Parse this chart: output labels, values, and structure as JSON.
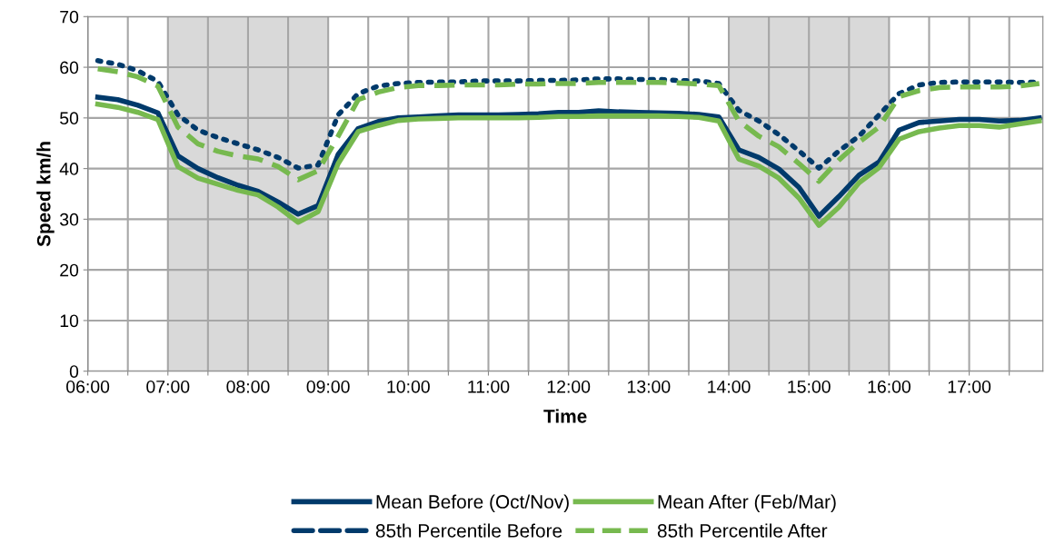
{
  "chart_data": {
    "type": "line",
    "xlabel": "Time",
    "ylabel": "Speed km/h",
    "x": [
      6.125,
      6.375,
      6.625,
      6.875,
      7.125,
      7.375,
      7.625,
      7.875,
      8.125,
      8.375,
      8.625,
      8.875,
      9.125,
      9.375,
      9.625,
      9.875,
      10.125,
      10.375,
      10.625,
      10.875,
      11.125,
      11.375,
      11.625,
      11.875,
      12.125,
      12.375,
      12.625,
      12.875,
      13.125,
      13.375,
      13.625,
      13.875,
      14.125,
      14.375,
      14.625,
      14.875,
      15.125,
      15.375,
      15.625,
      15.875,
      16.125,
      16.375,
      16.625,
      16.875,
      17.125,
      17.375,
      17.625,
      17.875
    ],
    "series": [
      {
        "name": "Mean Before (Oct/Nov)",
        "color": "#003a6b",
        "line_style": "solid",
        "values": [
          54.1,
          53.6,
          52.5,
          51.0,
          42.5,
          40.0,
          38.2,
          36.7,
          35.5,
          33.4,
          31.0,
          32.7,
          42.8,
          47.9,
          49.3,
          50.0,
          50.2,
          50.4,
          50.6,
          50.6,
          50.6,
          50.7,
          50.8,
          51.1,
          51.1,
          51.4,
          51.2,
          51.1,
          51.0,
          50.9,
          50.7,
          50.2,
          43.7,
          42.2,
          39.9,
          36.3,
          30.6,
          34.5,
          38.7,
          41.3,
          47.6,
          49.1,
          49.4,
          49.7,
          49.7,
          49.4,
          49.5,
          50.0
        ]
      },
      {
        "name": "85th Percentile Before",
        "color": "#003a6b",
        "line_style": "dotted",
        "values": [
          61.3,
          60.6,
          59.3,
          57.2,
          50.6,
          47.6,
          46.1,
          44.9,
          43.7,
          42.2,
          40.1,
          40.7,
          50.6,
          54.8,
          56.3,
          56.8,
          57.0,
          57.1,
          57.1,
          57.3,
          57.3,
          57.3,
          57.4,
          57.4,
          57.5,
          57.7,
          57.7,
          57.6,
          57.6,
          57.4,
          57.3,
          56.8,
          51.5,
          49.4,
          46.7,
          43.5,
          40.1,
          43.5,
          46.4,
          50.6,
          54.8,
          56.5,
          57.0,
          57.1,
          57.1,
          57.1,
          57.0,
          57.1
        ]
      },
      {
        "name": "Mean After (Feb/Mar)",
        "color": "#77b94f",
        "line_style": "solid",
        "values": [
          52.7,
          52.1,
          51.1,
          49.7,
          40.4,
          38.1,
          36.9,
          35.7,
          34.8,
          32.4,
          29.4,
          31.5,
          41.0,
          47.3,
          48.5,
          49.5,
          49.8,
          49.9,
          50.0,
          50.0,
          50.0,
          50.0,
          50.1,
          50.3,
          50.3,
          50.4,
          50.4,
          50.4,
          50.4,
          50.3,
          50.1,
          49.4,
          41.9,
          40.5,
          38.1,
          34.2,
          28.8,
          32.4,
          37.2,
          40.2,
          45.8,
          47.3,
          48.0,
          48.5,
          48.5,
          48.2,
          48.8,
          49.4
        ]
      },
      {
        "name": "85th Percentile After",
        "color": "#77b94f",
        "line_style": "dashed",
        "values": [
          59.7,
          59.1,
          58.1,
          56.3,
          48.2,
          44.9,
          43.4,
          42.5,
          41.9,
          40.4,
          37.8,
          39.6,
          46.4,
          53.6,
          55.1,
          56.0,
          56.4,
          56.4,
          56.5,
          56.5,
          56.5,
          56.7,
          56.7,
          56.8,
          56.8,
          57.0,
          57.0,
          57.0,
          57.0,
          56.9,
          56.7,
          56.4,
          49.4,
          46.4,
          44.3,
          41.0,
          37.5,
          41.7,
          45.2,
          48.2,
          54.2,
          55.4,
          56.0,
          56.1,
          56.1,
          56.1,
          56.3,
          56.8
        ]
      }
    ],
    "bands": [
      {
        "axis": "x",
        "from": 7,
        "to": 9,
        "color": "#d9d9d9"
      },
      {
        "axis": "x",
        "from": 14,
        "to": 16,
        "color": "#d9d9d9"
      }
    ],
    "xlim": [
      6,
      17.92
    ],
    "ylim": [
      0,
      70
    ],
    "yticks": [
      0,
      10,
      20,
      30,
      40,
      50,
      60,
      70
    ],
    "xticks": [
      {
        "value": 6,
        "label": "06:00"
      },
      {
        "value": 6.5,
        "label": null
      },
      {
        "value": 7,
        "label": "07:00"
      },
      {
        "value": 7.5,
        "label": null
      },
      {
        "value": 8,
        "label": "08:00"
      },
      {
        "value": 8.5,
        "label": null
      },
      {
        "value": 9,
        "label": "09:00"
      },
      {
        "value": 9.5,
        "label": null
      },
      {
        "value": 10,
        "label": "10:00"
      },
      {
        "value": 10.5,
        "label": null
      },
      {
        "value": 11,
        "label": "11:00"
      },
      {
        "value": 11.5,
        "label": null
      },
      {
        "value": 12,
        "label": "12:00"
      },
      {
        "value": 12.5,
        "label": null
      },
      {
        "value": 13,
        "label": "13:00"
      },
      {
        "value": 13.5,
        "label": null
      },
      {
        "value": 14,
        "label": "14:00"
      },
      {
        "value": 14.5,
        "label": null
      },
      {
        "value": 15,
        "label": "15:00"
      },
      {
        "value": 15.5,
        "label": null
      },
      {
        "value": 16,
        "label": "16:00"
      },
      {
        "value": 16.5,
        "label": null
      },
      {
        "value": 17,
        "label": "17:00"
      },
      {
        "value": 17.5,
        "label": null
      }
    ],
    "grid": true,
    "legend": "bottom",
    "marker": "none"
  }
}
